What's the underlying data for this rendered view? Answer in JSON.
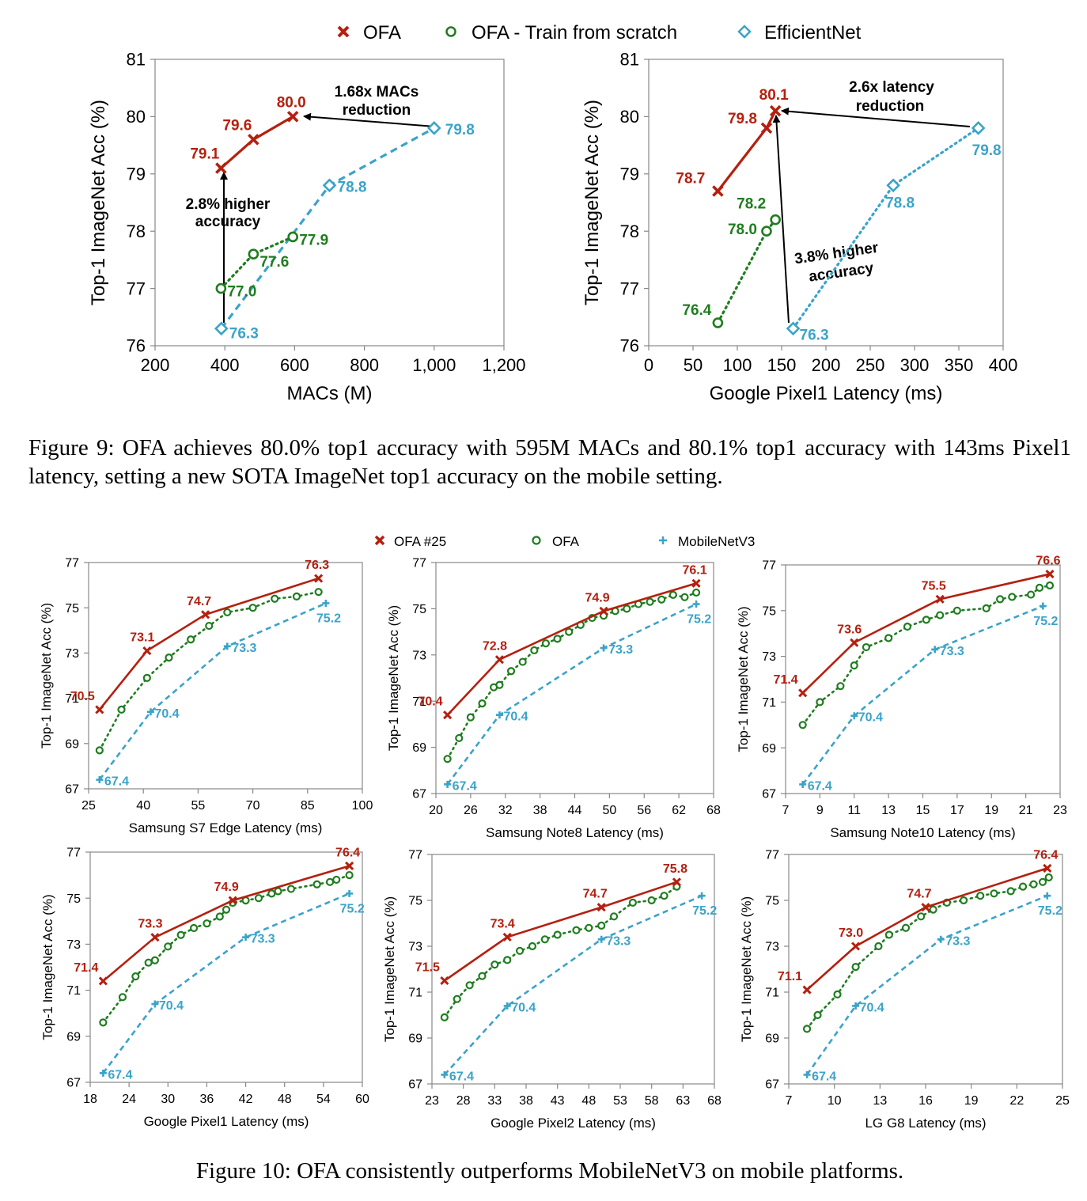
{
  "colors": {
    "ofa": "#b4200f",
    "scratch": "#1f7d1f",
    "baseline": "#3ba3c9"
  },
  "figure9": {
    "caption": "Figure 9: OFA achieves 80.0% top1 accuracy with 595M MACs and 80.1% top1 accuracy with 143ms Pixel1 latency, setting a new SOTA ImageNet top1 accuracy on the mobile setting.",
    "legend": [
      "OFA",
      "OFA - Train from scratch",
      "EfficientNet"
    ]
  },
  "figure10": {
    "caption": "Figure 10: OFA consistently outperforms MobileNetV3 on mobile platforms.",
    "legend": [
      "OFA #25",
      "OFA",
      "MobileNetV3"
    ]
  },
  "chart_data": [
    {
      "id": "f9a",
      "type": "line",
      "xlabel": "MACs (M)",
      "ylabel": "Top-1 ImageNet Acc (%)",
      "xlim": [
        200,
        1200
      ],
      "ylim": [
        76,
        81
      ],
      "xticks": [
        200,
        400,
        600,
        800,
        1000,
        1200
      ],
      "xtick_labels": [
        "200",
        "400",
        "600",
        "800",
        "1,000",
        "1,200"
      ],
      "yticks": [
        76,
        77,
        78,
        79,
        80,
        81
      ],
      "series": [
        {
          "name": "OFA",
          "x": [
            389,
            482,
            595
          ],
          "y": [
            79.1,
            79.6,
            80.0
          ],
          "labels": [
            "79.1",
            "79.6",
            "80.0"
          ]
        },
        {
          "name": "OFA - Train from scratch",
          "x": [
            389,
            482,
            595
          ],
          "y": [
            77.0,
            77.6,
            77.9
          ],
          "labels": [
            "77.0",
            "77.6",
            "77.9"
          ]
        },
        {
          "name": "EfficientNet",
          "x": [
            390,
            700,
            1000
          ],
          "y": [
            76.3,
            78.8,
            79.8
          ],
          "labels": [
            "76.3",
            "78.8",
            "79.8"
          ]
        }
      ],
      "annotations": [
        "1.68x MACs",
        "reduction",
        "2.8% higher",
        "accuracy"
      ]
    },
    {
      "id": "f9b",
      "type": "line",
      "xlabel": "Google Pixel1 Latency (ms)",
      "ylabel": "Top-1 ImageNet Acc (%)",
      "xlim": [
        0,
        400
      ],
      "ylim": [
        76,
        81
      ],
      "xticks": [
        0,
        50,
        100,
        150,
        200,
        250,
        300,
        350,
        400
      ],
      "xtick_labels": [
        "0",
        "50",
        "100",
        "150",
        "200",
        "250",
        "300",
        "350",
        "400"
      ],
      "yticks": [
        76,
        77,
        78,
        79,
        80,
        81
      ],
      "series": [
        {
          "name": "OFA",
          "x": [
            78,
            133,
            143
          ],
          "y": [
            78.7,
            79.8,
            80.1
          ],
          "labels": [
            "78.7",
            "79.8",
            "80.1"
          ]
        },
        {
          "name": "OFA - Train from scratch",
          "x": [
            78,
            133,
            143
          ],
          "y": [
            76.4,
            78.0,
            78.2
          ],
          "labels": [
            "76.4",
            "78.0",
            "78.2"
          ]
        },
        {
          "name": "EfficientNet",
          "x": [
            163,
            276,
            372
          ],
          "y": [
            76.3,
            78.8,
            79.8
          ],
          "labels": [
            "76.3",
            "78.8",
            "79.8"
          ]
        }
      ],
      "annotations": [
        "2.6x latency",
        "reduction",
        "3.8% higher",
        "accuracy"
      ]
    },
    {
      "id": "f10a",
      "type": "line",
      "xlabel": "Samsung S7 Edge Latency (ms)",
      "ylabel": "Top-1 ImageNet Acc (%)",
      "xlim": [
        25,
        100
      ],
      "ylim": [
        67,
        77
      ],
      "xticks": [
        25,
        40,
        55,
        70,
        85,
        100
      ],
      "yticks": [
        67,
        69,
        71,
        73,
        75,
        77
      ],
      "series": [
        {
          "name": "OFA #25",
          "x": [
            28,
            41,
            57,
            88
          ],
          "y": [
            70.5,
            73.1,
            74.7,
            76.3
          ],
          "labels": [
            "70.5",
            "73.1",
            "74.7",
            "76.3"
          ]
        },
        {
          "name": "OFA",
          "x": [
            28,
            34,
            41,
            47,
            53,
            58,
            63,
            70,
            76,
            82,
            88
          ],
          "y": [
            68.7,
            70.5,
            71.9,
            72.8,
            73.6,
            74.2,
            74.8,
            75.0,
            75.4,
            75.5,
            75.7
          ],
          "labels": []
        },
        {
          "name": "MobileNetV3",
          "x": [
            28,
            42,
            63,
            90
          ],
          "y": [
            67.4,
            70.4,
            73.3,
            75.2
          ],
          "labels": [
            "67.4",
            "70.4",
            "73.3",
            "75.2"
          ]
        }
      ]
    },
    {
      "id": "f10b",
      "type": "line",
      "xlabel": "Samsung Note8 Latency (ms)",
      "ylabel": "Top-1 ImageNet Acc (%)",
      "xlim": [
        20,
        68
      ],
      "ylim": [
        67,
        77
      ],
      "xticks": [
        20,
        26,
        32,
        38,
        44,
        50,
        56,
        62,
        68
      ],
      "yticks": [
        67,
        69,
        71,
        73,
        75,
        77
      ],
      "series": [
        {
          "name": "OFA #25",
          "x": [
            22,
            31,
            49,
            65
          ],
          "y": [
            70.4,
            72.8,
            74.9,
            76.1
          ],
          "labels": [
            "70.4",
            "72.8",
            "74.9",
            "76.1"
          ]
        },
        {
          "name": "OFA",
          "x": [
            22,
            24,
            26,
            28,
            30,
            31,
            33,
            35,
            37,
            39,
            41,
            43,
            45,
            47,
            49,
            51,
            53,
            55,
            57,
            59,
            61,
            63,
            65
          ],
          "y": [
            68.5,
            69.4,
            70.3,
            70.9,
            71.6,
            71.7,
            72.3,
            72.7,
            73.2,
            73.5,
            73.7,
            74.0,
            74.3,
            74.6,
            74.7,
            74.9,
            75.0,
            75.2,
            75.3,
            75.4,
            75.6,
            75.5,
            75.7
          ],
          "labels": []
        },
        {
          "name": "MobileNetV3",
          "x": [
            22,
            31,
            49,
            65
          ],
          "y": [
            67.4,
            70.4,
            73.3,
            75.2
          ],
          "labels": [
            "67.4",
            "70.4",
            "73.3",
            "75.2"
          ]
        }
      ]
    },
    {
      "id": "f10c",
      "type": "line",
      "xlabel": "Samsung Note10 Latency (ms)",
      "ylabel": "Top-1 ImageNet Acc (%)",
      "xlim": [
        7,
        23
      ],
      "ylim": [
        67,
        77
      ],
      "xticks": [
        7,
        9,
        11,
        13,
        15,
        17,
        19,
        21,
        23
      ],
      "yticks": [
        67,
        69,
        71,
        73,
        75,
        77
      ],
      "series": [
        {
          "name": "OFA #25",
          "x": [
            8,
            11,
            16,
            22.4
          ],
          "y": [
            71.4,
            73.6,
            75.5,
            76.6
          ],
          "labels": [
            "71.4",
            "73.6",
            "75.5",
            "76.6"
          ]
        },
        {
          "name": "OFA",
          "x": [
            8,
            9,
            10.2,
            11,
            11.7,
            13,
            14.1,
            15.2,
            16,
            17,
            18.7,
            19.5,
            20.2,
            21.3,
            21.8,
            22.4
          ],
          "y": [
            70.0,
            71.0,
            71.7,
            72.6,
            73.4,
            73.8,
            74.3,
            74.6,
            74.8,
            75.0,
            75.1,
            75.5,
            75.6,
            75.7,
            76.0,
            76.1
          ],
          "labels": []
        },
        {
          "name": "MobileNetV3",
          "x": [
            8,
            11,
            15.7,
            22
          ],
          "y": [
            67.4,
            70.4,
            73.3,
            75.2
          ],
          "labels": [
            "67.4",
            "70.4",
            "73.3",
            "75.2"
          ]
        }
      ]
    },
    {
      "id": "f10d",
      "type": "line",
      "xlabel": "Google Pixel1 Latency (ms)",
      "ylabel": "Top-1 ImageNet Acc (%)",
      "xlim": [
        18,
        60
      ],
      "ylim": [
        67,
        77
      ],
      "xticks": [
        18,
        24,
        30,
        36,
        42,
        48,
        54,
        60
      ],
      "yticks": [
        67,
        69,
        71,
        73,
        75,
        77
      ],
      "series": [
        {
          "name": "OFA #25",
          "x": [
            20,
            28,
            40,
            58
          ],
          "y": [
            71.4,
            73.3,
            74.9,
            76.4
          ],
          "labels": [
            "71.4",
            "73.3",
            "74.9",
            "76.4"
          ]
        },
        {
          "name": "OFA",
          "x": [
            20,
            23,
            25,
            27,
            28,
            30,
            32,
            34,
            36,
            38,
            39,
            40,
            42,
            44,
            46,
            47,
            49,
            53,
            55,
            56,
            58
          ],
          "y": [
            69.6,
            70.7,
            71.6,
            72.2,
            72.3,
            72.9,
            73.4,
            73.7,
            73.9,
            74.2,
            74.5,
            74.8,
            74.9,
            75.0,
            75.2,
            75.3,
            75.4,
            75.6,
            75.7,
            75.8,
            76.0
          ],
          "labels": []
        },
        {
          "name": "MobileNetV3",
          "x": [
            20,
            28,
            42,
            58
          ],
          "y": [
            67.4,
            70.4,
            73.3,
            75.2
          ],
          "labels": [
            "67.4",
            "70.4",
            "73.3",
            "75.2"
          ]
        }
      ]
    },
    {
      "id": "f10e",
      "type": "line",
      "xlabel": "Google Pixel2 Latency (ms)",
      "ylabel": "Top-1 ImageNet Acc (%)",
      "xlim": [
        23,
        68
      ],
      "ylim": [
        67,
        77
      ],
      "xticks": [
        23,
        28,
        33,
        38,
        43,
        48,
        53,
        58,
        63,
        68
      ],
      "yticks": [
        67,
        69,
        71,
        73,
        75,
        77
      ],
      "series": [
        {
          "name": "OFA #25",
          "x": [
            25,
            35,
            50,
            62
          ],
          "y": [
            71.5,
            73.4,
            74.7,
            75.8
          ],
          "labels": [
            "71.5",
            "73.4",
            "74.7",
            "75.8"
          ]
        },
        {
          "name": "OFA",
          "x": [
            25,
            27,
            29,
            31,
            33,
            35,
            37,
            39,
            41,
            43,
            46,
            48,
            50,
            52,
            55,
            58,
            60,
            62
          ],
          "y": [
            69.9,
            70.7,
            71.3,
            71.7,
            72.2,
            72.4,
            72.8,
            73.0,
            73.3,
            73.5,
            73.7,
            73.8,
            73.9,
            74.3,
            74.9,
            75.0,
            75.2,
            75.6
          ],
          "labels": []
        },
        {
          "name": "MobileNetV3",
          "x": [
            25,
            35,
            50,
            66
          ],
          "y": [
            67.4,
            70.4,
            73.3,
            75.2
          ],
          "labels": [
            "67.4",
            "70.4",
            "73.3",
            "75.2"
          ]
        }
      ]
    },
    {
      "id": "f10f",
      "type": "line",
      "xlabel": "LG G8 Latency (ms)",
      "ylabel": "Top-1 ImageNet Acc (%)",
      "xlim": [
        7,
        25
      ],
      "ylim": [
        67,
        77
      ],
      "xticks": [
        7,
        10,
        13,
        16,
        19,
        22,
        25
      ],
      "yticks": [
        67,
        69,
        71,
        73,
        75,
        77
      ],
      "series": [
        {
          "name": "OFA #25",
          "x": [
            8.2,
            11.4,
            16,
            24
          ],
          "y": [
            71.1,
            73.0,
            74.7,
            76.4
          ],
          "labels": [
            "71.1",
            "73.0",
            "74.7",
            "76.4"
          ]
        },
        {
          "name": "OFA",
          "x": [
            8.2,
            8.9,
            10.2,
            11.4,
            12.9,
            13.6,
            14.7,
            15.7,
            16.5,
            17.4,
            18.5,
            19.6,
            20.5,
            21.6,
            22.4,
            23.1,
            23.7,
            24.1
          ],
          "y": [
            69.4,
            70.0,
            70.9,
            72.1,
            73.0,
            73.5,
            73.8,
            74.3,
            74.6,
            74.9,
            75.0,
            75.2,
            75.3,
            75.4,
            75.6,
            75.7,
            75.8,
            76.0
          ],
          "labels": []
        },
        {
          "name": "MobileNetV3",
          "x": [
            8.2,
            11.4,
            17,
            24
          ],
          "y": [
            67.4,
            70.4,
            73.3,
            75.2
          ],
          "labels": [
            "67.4",
            "70.4",
            "73.3",
            "75.2"
          ]
        }
      ]
    }
  ]
}
